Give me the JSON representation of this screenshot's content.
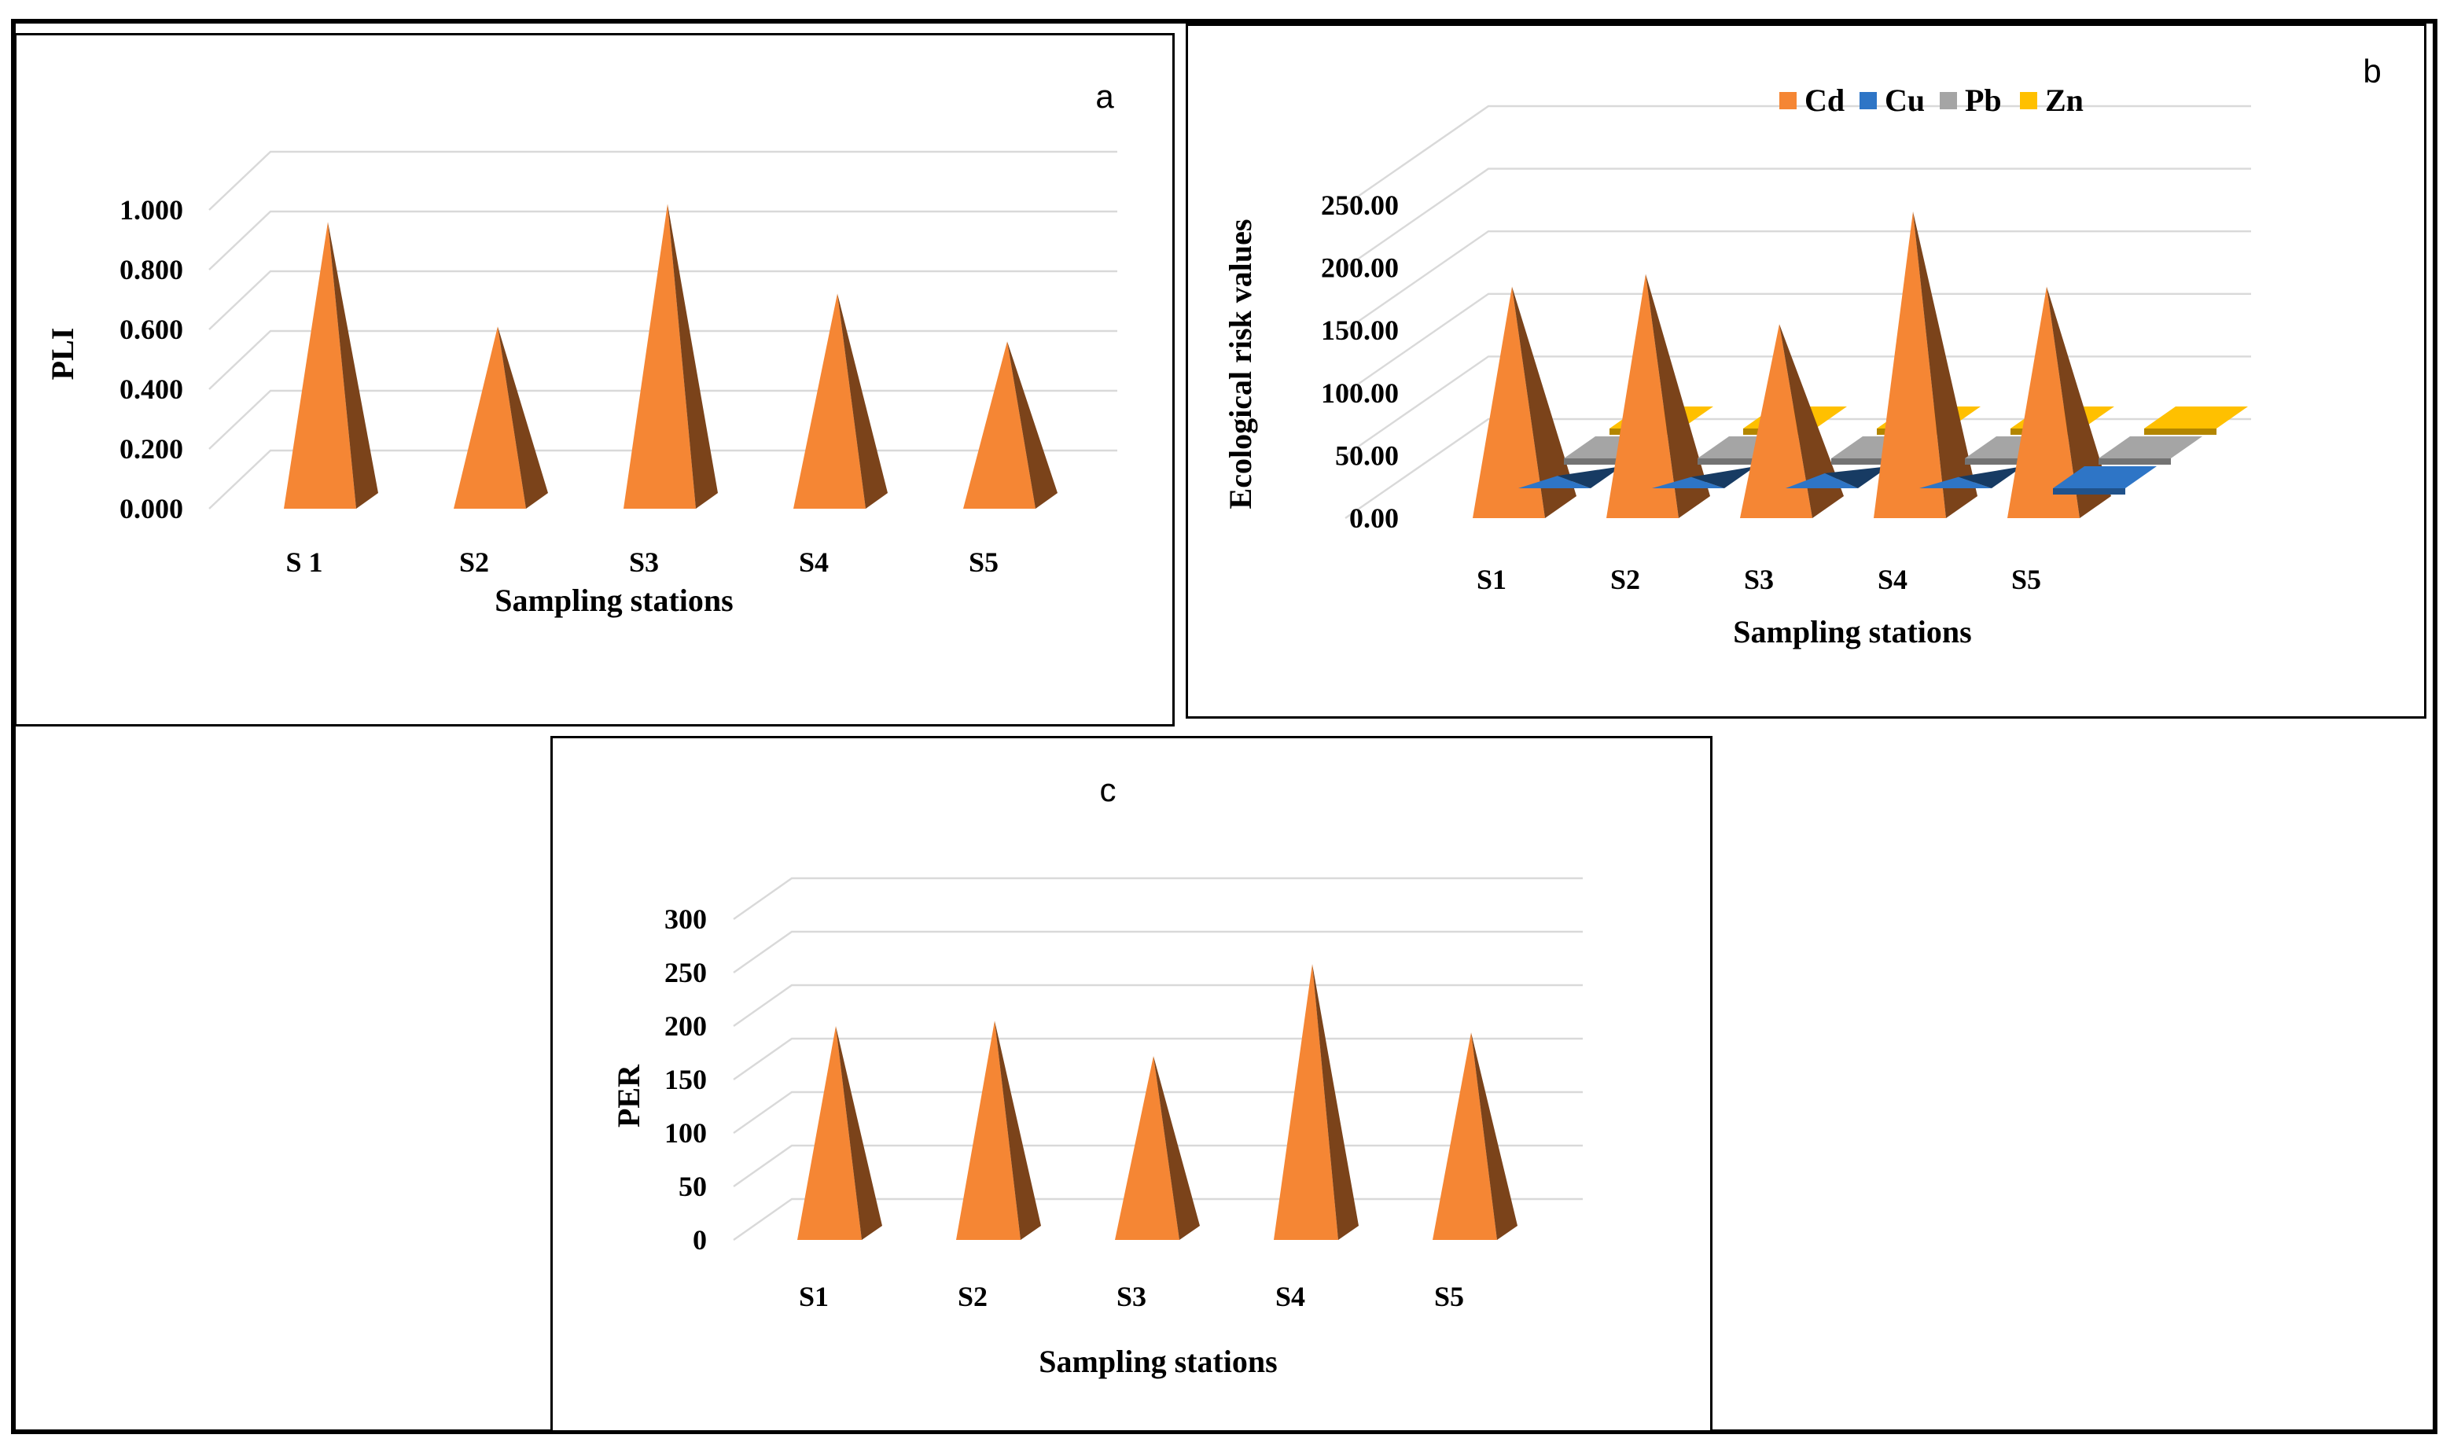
{
  "chart_data": [
    {
      "type": "bar",
      "panel_label": "a",
      "categories": [
        "S 1",
        "S2",
        "S3",
        "S4",
        "S5"
      ],
      "series": [
        {
          "values": [
            0.96,
            0.61,
            1.02,
            0.72,
            0.56
          ],
          "color": "#f58634"
        }
      ],
      "xlabel": "Sampling stations",
      "ylabel": "PLI",
      "ylim": [
        0,
        1.0
      ],
      "yticks": [
        "0.000",
        "0.200",
        "0.400",
        "0.600",
        "0.800",
        "1.000"
      ],
      "grid": true,
      "bar_shape": "3d-pyramid"
    },
    {
      "type": "bar",
      "panel_label": "b",
      "categories": [
        "S1",
        "S2",
        "S3",
        "S4",
        "S5"
      ],
      "series": [
        {
          "name": "Cd",
          "values": [
            185,
            195,
            155,
            245,
            185
          ],
          "color": "#f58634"
        },
        {
          "name": "Cu",
          "values": [
            10,
            9,
            12,
            9,
            6
          ],
          "color": "#2e75c6"
        },
        {
          "name": "Pb",
          "values": [
            7,
            6,
            6,
            6,
            5
          ],
          "color": "#a5a5a5"
        },
        {
          "name": "Zn",
          "values": [
            1,
            1,
            1,
            1,
            1
          ],
          "color": "#ffc000"
        }
      ],
      "xlabel": "Sampling stations",
      "ylabel": "Ecological risk values",
      "ylim": [
        0,
        250
      ],
      "yticks": [
        "0.00",
        "50.00",
        "100.00",
        "150.00",
        "200.00",
        "250.00"
      ],
      "legend_position": "top",
      "grid": true,
      "bar_shape": "3d-pyramid"
    },
    {
      "type": "bar",
      "panel_label": "c",
      "categories": [
        "S1",
        "S2",
        "S3",
        "S4",
        "S5"
      ],
      "series": [
        {
          "values": [
            200,
            205,
            172,
            258,
            194
          ],
          "color": "#f58634"
        }
      ],
      "xlabel": "Sampling stations",
      "ylabel": "PER",
      "ylim": [
        0,
        300
      ],
      "yticks": [
        "0",
        "50",
        "100",
        "150",
        "200",
        "250",
        "300"
      ],
      "grid": true,
      "bar_shape": "3d-pyramid"
    }
  ]
}
